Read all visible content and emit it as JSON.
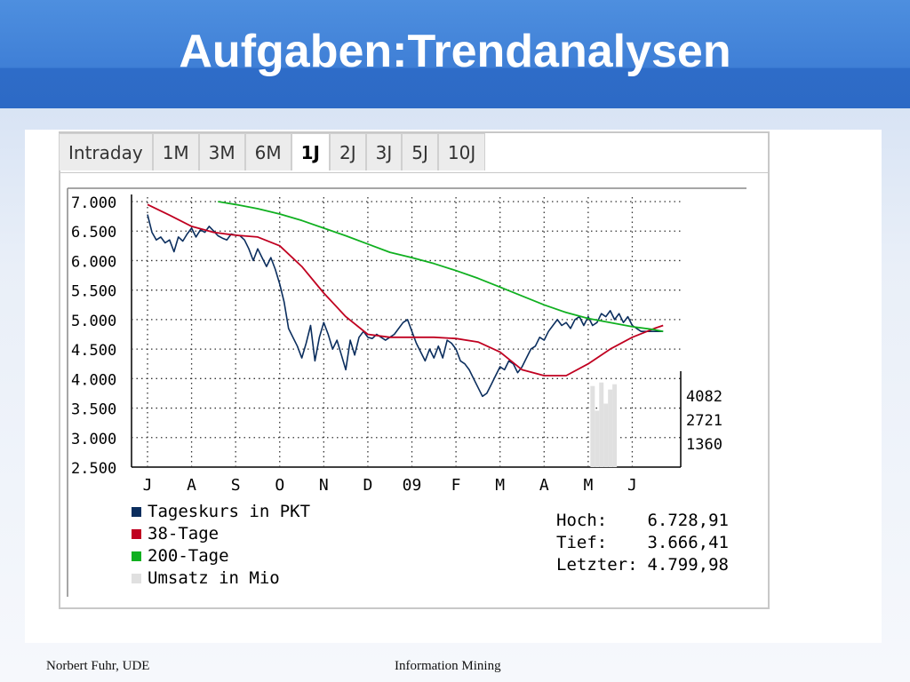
{
  "slide": {
    "title": "Aufgaben:Trendanalysen",
    "footer_left": "Norbert Fuhr, UDE",
    "footer_center": "Information Mining"
  },
  "tabs": [
    {
      "label": "Intraday",
      "active": false
    },
    {
      "label": "1M",
      "active": false
    },
    {
      "label": "3M",
      "active": false
    },
    {
      "label": "6M",
      "active": false
    },
    {
      "label": "1J",
      "active": true
    },
    {
      "label": "2J",
      "active": false
    },
    {
      "label": "3J",
      "active": false
    },
    {
      "label": "5J",
      "active": false
    },
    {
      "label": "10J",
      "active": false
    }
  ],
  "stats": {
    "high_label": "Hoch:",
    "high_value": "6.728,91",
    "low_label": "Tief:",
    "low_value": "3.666,41",
    "last_label": "Letzter:",
    "last_value": "4.799,98"
  },
  "chart_data": {
    "type": "line",
    "title": "",
    "xlabel": "",
    "ylabel": "",
    "ylim": [
      2500,
      7000
    ],
    "x_range": [
      0,
      12.1
    ],
    "y_ticks": [
      "7.000",
      "6.500",
      "6.000",
      "5.500",
      "5.000",
      "4.500",
      "4.000",
      "3.500",
      "3.000",
      "2.500"
    ],
    "y_tick_values": [
      7000,
      6500,
      6000,
      5500,
      5000,
      4500,
      4000,
      3500,
      3000,
      2500
    ],
    "x_ticks": [
      "J",
      "A",
      "S",
      "O",
      "N",
      "D",
      "09",
      "F",
      "M",
      "A",
      "M",
      "J"
    ],
    "x_tick_values": [
      0,
      1,
      2,
      3,
      4,
      5,
      6,
      7,
      8,
      9,
      10,
      11
    ],
    "grid": true,
    "volume_ticks": [
      "4082",
      "2721",
      "1360"
    ],
    "volume_tick_values": [
      4082,
      2721,
      1360
    ],
    "volume_max": 5440,
    "legend_position": "bottom-left",
    "legend": [
      {
        "label": "Tageskurs in PKT",
        "color": "#0b2e5e"
      },
      {
        "label": "38-Tage",
        "color": "#c00020"
      },
      {
        "label": "200-Tage",
        "color": "#10b020"
      },
      {
        "label": "Umsatz in Mio",
        "color": "#e0e0e0"
      }
    ],
    "series": [
      {
        "name": "Tageskurs in PKT",
        "color": "#0b2e5e",
        "x": [
          0,
          0.1,
          0.2,
          0.3,
          0.4,
          0.5,
          0.6,
          0.7,
          0.8,
          0.9,
          1.0,
          1.1,
          1.2,
          1.3,
          1.4,
          1.5,
          1.6,
          1.7,
          1.8,
          1.9,
          2.0,
          2.1,
          2.2,
          2.3,
          2.4,
          2.5,
          2.6,
          2.7,
          2.8,
          2.9,
          3.0,
          3.1,
          3.2,
          3.3,
          3.4,
          3.5,
          3.6,
          3.7,
          3.8,
          3.9,
          4.0,
          4.1,
          4.2,
          4.3,
          4.4,
          4.5,
          4.6,
          4.7,
          4.8,
          4.9,
          5.0,
          5.1,
          5.2,
          5.3,
          5.4,
          5.5,
          5.6,
          5.7,
          5.8,
          5.9,
          6.0,
          6.1,
          6.2,
          6.3,
          6.4,
          6.5,
          6.6,
          6.7,
          6.8,
          6.9,
          7.0,
          7.1,
          7.2,
          7.3,
          7.4,
          7.5,
          7.6,
          7.7,
          7.8,
          7.9,
          8.0,
          8.1,
          8.2,
          8.3,
          8.4,
          8.5,
          8.6,
          8.7,
          8.8,
          8.9,
          9.0,
          9.1,
          9.2,
          9.3,
          9.4,
          9.5,
          9.6,
          9.7,
          9.8,
          9.9,
          10.0,
          10.1,
          10.2,
          10.3,
          10.4,
          10.5,
          10.6,
          10.7,
          10.8,
          10.9,
          11.0,
          11.1,
          11.2,
          11.3,
          11.4,
          11.5,
          11.6,
          11.7
        ],
        "values": [
          6780,
          6480,
          6350,
          6400,
          6300,
          6350,
          6150,
          6400,
          6330,
          6450,
          6550,
          6400,
          6520,
          6480,
          6580,
          6500,
          6420,
          6380,
          6350,
          6450,
          6430,
          6420,
          6350,
          6200,
          6000,
          6200,
          6050,
          5900,
          6050,
          5850,
          5600,
          5300,
          4850,
          4700,
          4550,
          4350,
          4600,
          4900,
          4300,
          4700,
          4950,
          4750,
          4500,
          4650,
          4400,
          4150,
          4650,
          4400,
          4700,
          4800,
          4700,
          4680,
          4750,
          4700,
          4650,
          4700,
          4750,
          4850,
          4950,
          5000,
          4800,
          4600,
          4450,
          4300,
          4500,
          4350,
          4550,
          4350,
          4650,
          4600,
          4500,
          4300,
          4250,
          4150,
          4000,
          3850,
          3700,
          3750,
          3900,
          4050,
          4200,
          4150,
          4300,
          4250,
          4100,
          4200,
          4350,
          4500,
          4550,
          4700,
          4650,
          4800,
          4900,
          5000,
          4900,
          4950,
          4850,
          5000,
          5050,
          4900,
          5050,
          4900,
          4950,
          5100,
          5050,
          5150,
          5000,
          5100,
          4950,
          5050,
          4900,
          4850,
          4800,
          4800,
          4800,
          4800,
          4800,
          4800
        ],
        "note_end": 11.7
      },
      {
        "name": "38-Tage",
        "color": "#c00020",
        "x": [
          0,
          0.5,
          1.0,
          1.5,
          2.0,
          2.5,
          3.0,
          3.5,
          4.0,
          4.5,
          5.0,
          5.5,
          6.0,
          6.5,
          7.0,
          7.5,
          8.0,
          8.5,
          9.0,
          9.5,
          10.0,
          10.5,
          11.0,
          11.5,
          11.7
        ],
        "values": [
          6950,
          6770,
          6580,
          6480,
          6430,
          6400,
          6250,
          5900,
          5450,
          5050,
          4750,
          4700,
          4700,
          4700,
          4680,
          4620,
          4450,
          4150,
          4050,
          4050,
          4250,
          4500,
          4700,
          4850,
          4900
        ]
      },
      {
        "name": "200-Tage",
        "color": "#10b020",
        "x": [
          1.6,
          2.0,
          2.5,
          3.0,
          3.5,
          4.0,
          4.5,
          5.0,
          5.5,
          6.0,
          6.5,
          7.0,
          7.5,
          8.0,
          8.5,
          9.0,
          9.5,
          10.0,
          10.5,
          11.0,
          11.5,
          11.7
        ],
        "values": [
          7000,
          6950,
          6880,
          6790,
          6680,
          6550,
          6420,
          6280,
          6140,
          6050,
          5950,
          5830,
          5700,
          5550,
          5400,
          5250,
          5120,
          5020,
          4950,
          4880,
          4830,
          4800
        ]
      }
    ],
    "volume": {
      "name": "Umsatz in Mio",
      "color": "#e0e0e0",
      "x": [
        10.1,
        10.2,
        10.3,
        10.4,
        10.5,
        10.6
      ],
      "values": [
        4600,
        3200,
        4800,
        3600,
        4400,
        4700
      ]
    }
  }
}
